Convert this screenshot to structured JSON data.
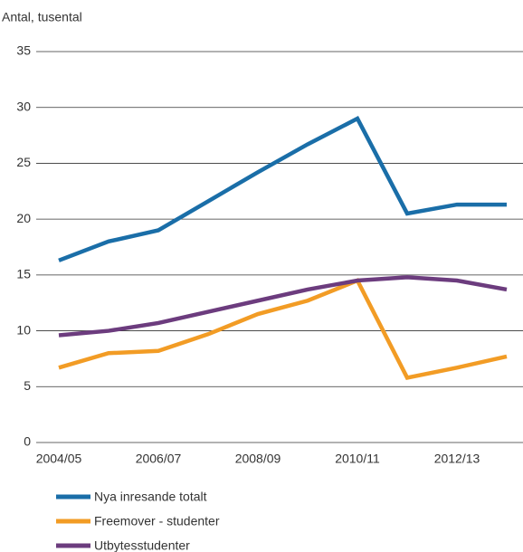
{
  "chart_data": {
    "type": "line",
    "y_label": "Antal, tusental",
    "categories": [
      "2004/05",
      null,
      "2006/07",
      null,
      "2008/09",
      null,
      "2010/11",
      null,
      "2012/13",
      null
    ],
    "series": [
      {
        "name": "Nya inresande totalt",
        "color": "#1a6ea8",
        "values": [
          16.3,
          18.0,
          19.0,
          21.6,
          24.2,
          26.7,
          29.0,
          20.5,
          21.3,
          21.3
        ]
      },
      {
        "name": "Freemover - studenter",
        "color": "#f29c25",
        "values": [
          6.7,
          8.0,
          8.2,
          9.7,
          11.5,
          12.7,
          14.5,
          5.8,
          6.7,
          7.7
        ]
      },
      {
        "name": "Utbytesstudenter",
        "color": "#6c3c7e",
        "values": [
          9.6,
          10.0,
          10.7,
          11.7,
          12.7,
          13.7,
          14.5,
          14.8,
          14.5,
          13.7
        ]
      }
    ],
    "ylim": [
      0,
      35
    ],
    "yticks": [
      0,
      5,
      10,
      15,
      20,
      25,
      30,
      35
    ],
    "grid": true
  }
}
